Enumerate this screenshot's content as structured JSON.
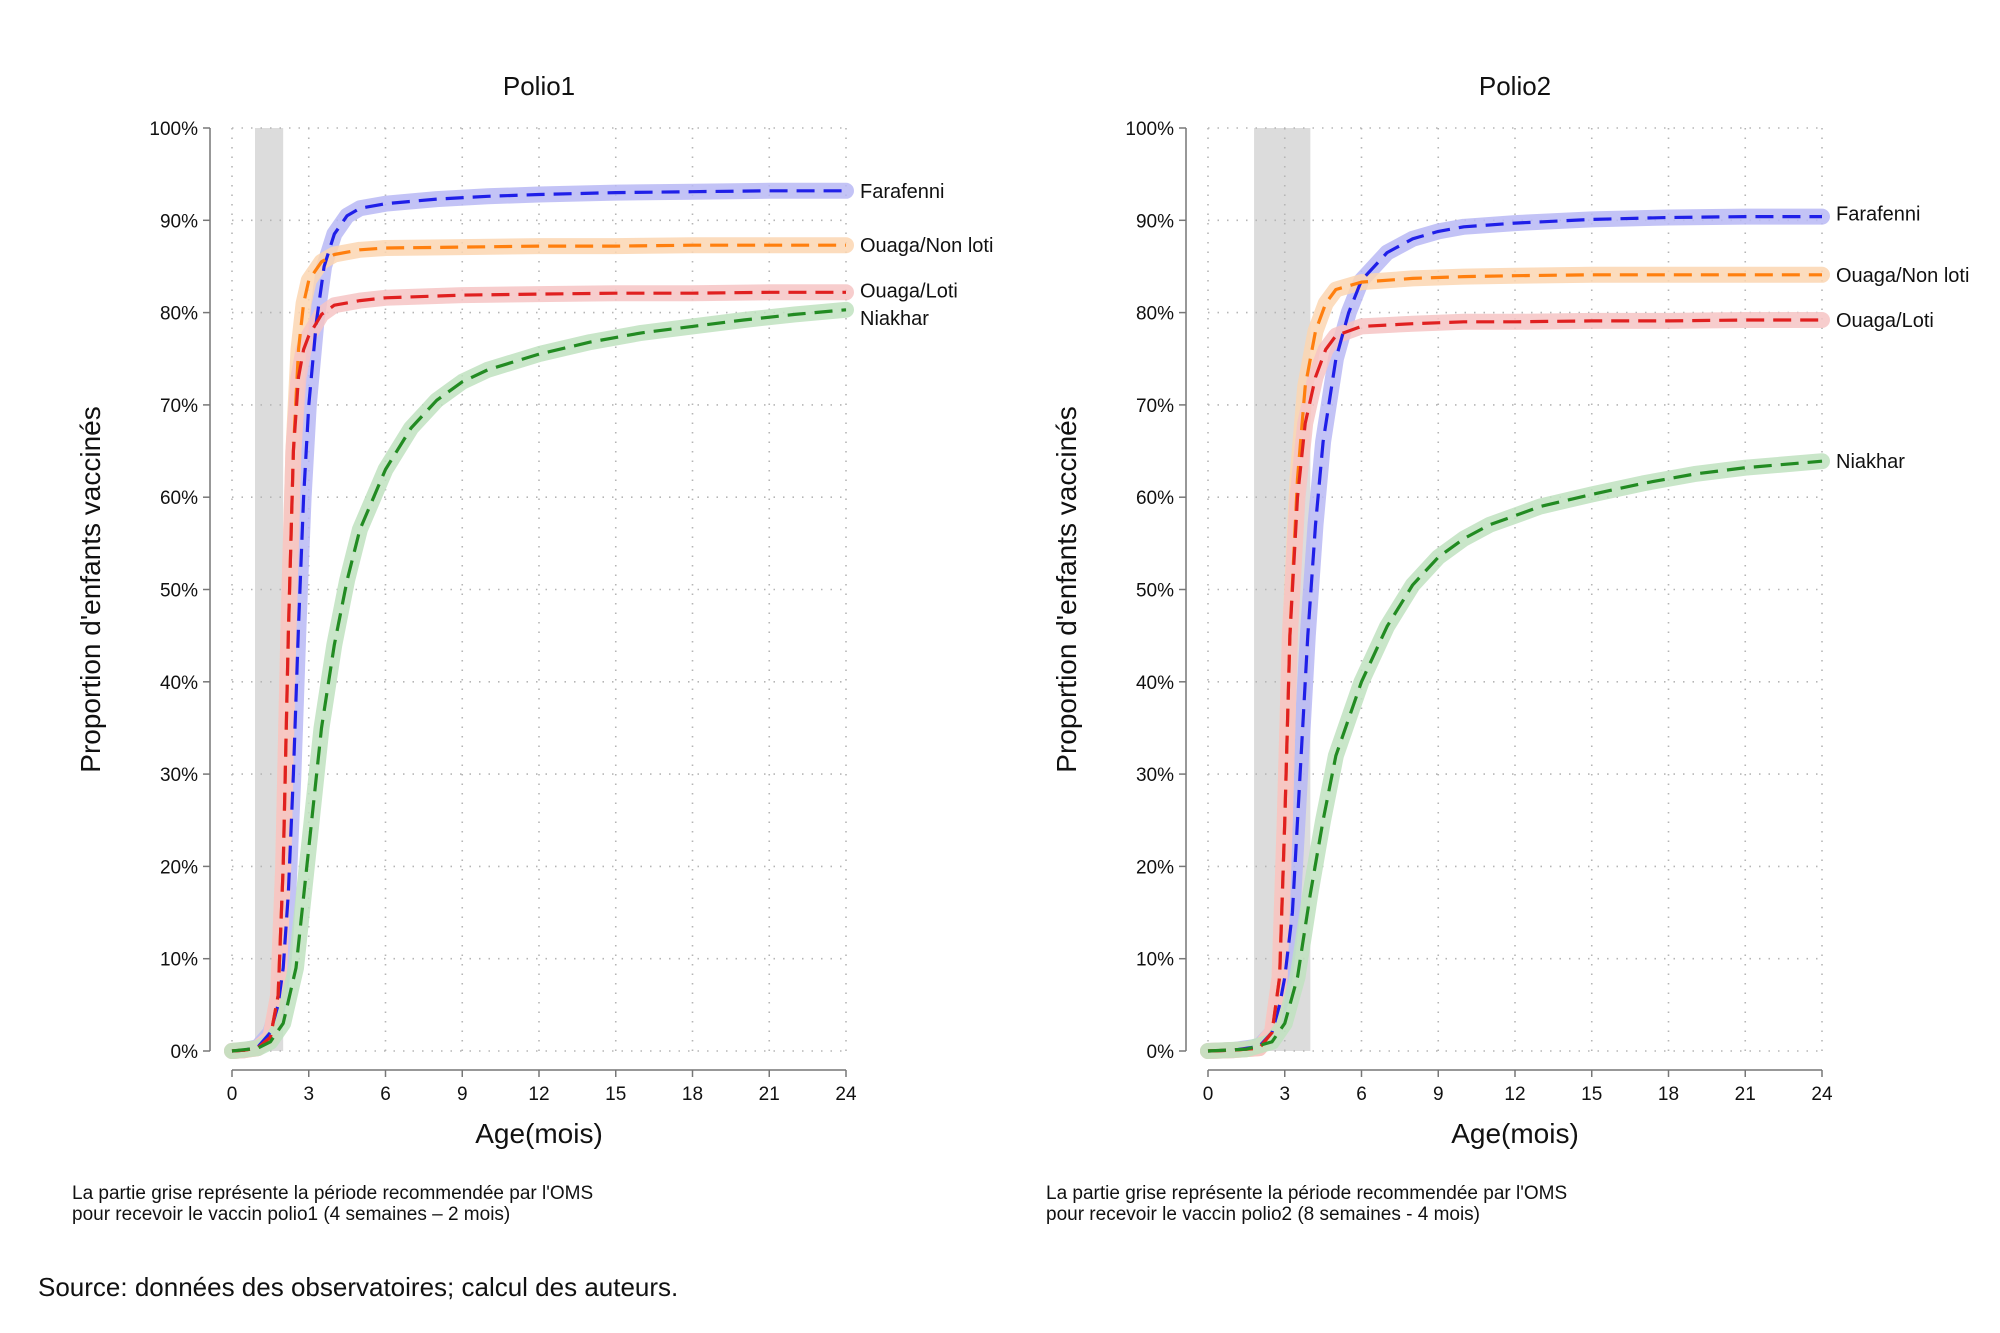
{
  "chart_data": [
    {
      "type": "line",
      "title": "Polio1",
      "xlabel": "Age(mois)",
      "ylabel": "Proportion d'enfants vaccinés",
      "xlim": [
        0,
        24
      ],
      "ylim": [
        0,
        100
      ],
      "x_ticks": [
        "0",
        "3",
        "6",
        "9",
        "12",
        "15",
        "18",
        "21",
        "24"
      ],
      "y_ticks": [
        "0%",
        "10%",
        "20%",
        "30%",
        "40%",
        "50%",
        "60%",
        "70%",
        "80%",
        "90%",
        "100%"
      ],
      "grid": true,
      "shaded_period": [
        0.9,
        2.0
      ],
      "note": [
        "La partie grise représente la période recommendée par l'OMS",
        "pour recevoir le vaccin polio1 (4 semaines – 2 mois)"
      ],
      "series": [
        {
          "name": "Farafenni",
          "color": "#1f1fe8",
          "band": "#b9b9f4",
          "points": [
            [
              0,
              0
            ],
            [
              0.5,
              0.1
            ],
            [
              1,
              0.4
            ],
            [
              1.5,
              2
            ],
            [
              1.8,
              5
            ],
            [
              2,
              9
            ],
            [
              2.2,
              17
            ],
            [
              2.4,
              30
            ],
            [
              2.6,
              46
            ],
            [
              2.8,
              60
            ],
            [
              3,
              70
            ],
            [
              3.3,
              79
            ],
            [
              3.6,
              85
            ],
            [
              4,
              88.5
            ],
            [
              4.5,
              90.5
            ],
            [
              5,
              91.3
            ],
            [
              6,
              91.8
            ],
            [
              8,
              92.3
            ],
            [
              10,
              92.6
            ],
            [
              12,
              92.8
            ],
            [
              15,
              93
            ],
            [
              18,
              93.1
            ],
            [
              21,
              93.2
            ],
            [
              24,
              93.2
            ]
          ]
        },
        {
          "name": "Ouaga/Non loti",
          "color": "#ff7f0e",
          "band": "#fbd6b2",
          "points": [
            [
              0,
              0
            ],
            [
              0.5,
              0.1
            ],
            [
              1,
              0.3
            ],
            [
              1.5,
              1.5
            ],
            [
              1.8,
              6
            ],
            [
              2,
              20
            ],
            [
              2.2,
              45
            ],
            [
              2.4,
              65
            ],
            [
              2.6,
              76
            ],
            [
              2.8,
              81
            ],
            [
              3,
              83.5
            ],
            [
              3.5,
              85.5
            ],
            [
              4,
              86.3
            ],
            [
              5,
              86.8
            ],
            [
              6,
              87
            ],
            [
              9,
              87.1
            ],
            [
              12,
              87.2
            ],
            [
              15,
              87.2
            ],
            [
              18,
              87.3
            ],
            [
              21,
              87.3
            ],
            [
              24,
              87.3
            ]
          ]
        },
        {
          "name": "Ouaga/Loti",
          "color": "#e02020",
          "band": "#f6c4c4",
          "points": [
            [
              0,
              0
            ],
            [
              0.5,
              0.1
            ],
            [
              1,
              0.3
            ],
            [
              1.5,
              1.5
            ],
            [
              1.8,
              6
            ],
            [
              2,
              20
            ],
            [
              2.2,
              45
            ],
            [
              2.4,
              65
            ],
            [
              2.6,
              73
            ],
            [
              2.8,
              76
            ],
            [
              3,
              77.5
            ],
            [
              3.5,
              79.8
            ],
            [
              4,
              80.8
            ],
            [
              5,
              81.3
            ],
            [
              6,
              81.6
            ],
            [
              9,
              81.9
            ],
            [
              12,
              82
            ],
            [
              15,
              82.1
            ],
            [
              18,
              82.1
            ],
            [
              21,
              82.2
            ],
            [
              24,
              82.2
            ]
          ]
        },
        {
          "name": "Niakhar",
          "color": "#228b22",
          "band": "#bfe2bf",
          "points": [
            [
              0,
              0
            ],
            [
              1,
              0.3
            ],
            [
              1.5,
              1
            ],
            [
              2,
              3
            ],
            [
              2.5,
              9
            ],
            [
              3,
              22
            ],
            [
              3.5,
              35
            ],
            [
              4,
              44
            ],
            [
              4.5,
              51
            ],
            [
              5,
              56.5
            ],
            [
              6,
              63
            ],
            [
              7,
              67.5
            ],
            [
              8,
              70.5
            ],
            [
              9,
              72.5
            ],
            [
              10,
              73.8
            ],
            [
              12,
              75.5
            ],
            [
              14,
              76.8
            ],
            [
              16,
              77.8
            ],
            [
              18,
              78.5
            ],
            [
              20,
              79.2
            ],
            [
              22,
              79.8
            ],
            [
              24,
              80.3
            ]
          ]
        }
      ]
    },
    {
      "type": "line",
      "title": "Polio2",
      "xlabel": "Age(mois)",
      "ylabel": "Proportion d'enfants vaccinés",
      "xlim": [
        0,
        24
      ],
      "ylim": [
        0,
        100
      ],
      "x_ticks": [
        "0",
        "3",
        "6",
        "9",
        "12",
        "15",
        "18",
        "21",
        "24"
      ],
      "y_ticks": [
        "0%",
        "10%",
        "20%",
        "30%",
        "40%",
        "50%",
        "60%",
        "70%",
        "80%",
        "90%",
        "100%"
      ],
      "grid": true,
      "shaded_period": [
        1.8,
        4.0
      ],
      "note": [
        "La partie grise représente la période recommendée par l'OMS",
        "pour recevoir le vaccin polio2 (8 semaines - 4 mois)"
      ],
      "series": [
        {
          "name": "Farafenni",
          "color": "#1f1fe8",
          "band": "#b9b9f4",
          "points": [
            [
              0,
              0
            ],
            [
              1,
              0.1
            ],
            [
              2,
              0.5
            ],
            [
              2.5,
              2
            ],
            [
              2.8,
              5
            ],
            [
              3,
              8
            ],
            [
              3.3,
              15
            ],
            [
              3.6,
              30
            ],
            [
              3.9,
              45
            ],
            [
              4.2,
              57
            ],
            [
              4.5,
              66
            ],
            [
              5,
              75
            ],
            [
              5.5,
              80
            ],
            [
              6,
              83.5
            ],
            [
              7,
              86.5
            ],
            [
              8,
              88
            ],
            [
              9,
              88.8
            ],
            [
              10,
              89.3
            ],
            [
              12,
              89.7
            ],
            [
              15,
              90.1
            ],
            [
              18,
              90.3
            ],
            [
              21,
              90.4
            ],
            [
              24,
              90.4
            ]
          ]
        },
        {
          "name": "Ouaga/Non loti",
          "color": "#ff7f0e",
          "band": "#fbd6b2",
          "points": [
            [
              0,
              0
            ],
            [
              1,
              0.1
            ],
            [
              2,
              0.3
            ],
            [
              2.5,
              2
            ],
            [
              2.8,
              8
            ],
            [
              3,
              25
            ],
            [
              3.2,
              45
            ],
            [
              3.5,
              62
            ],
            [
              3.8,
              72
            ],
            [
              4.2,
              78
            ],
            [
              4.6,
              81
            ],
            [
              5,
              82.5
            ],
            [
              6,
              83.3
            ],
            [
              8,
              83.7
            ],
            [
              10,
              83.9
            ],
            [
              12,
              84
            ],
            [
              15,
              84.1
            ],
            [
              18,
              84.1
            ],
            [
              21,
              84.1
            ],
            [
              24,
              84.1
            ]
          ]
        },
        {
          "name": "Ouaga/Loti",
          "color": "#e02020",
          "band": "#f6c4c4",
          "points": [
            [
              0,
              0
            ],
            [
              1,
              0.1
            ],
            [
              2,
              0.3
            ],
            [
              2.5,
              2
            ],
            [
              2.8,
              8
            ],
            [
              3,
              25
            ],
            [
              3.2,
              45
            ],
            [
              3.5,
              60
            ],
            [
              3.8,
              68
            ],
            [
              4.2,
              73
            ],
            [
              4.6,
              76
            ],
            [
              5,
              77.5
            ],
            [
              6,
              78.5
            ],
            [
              8,
              78.8
            ],
            [
              10,
              79
            ],
            [
              12,
              79
            ],
            [
              15,
              79.1
            ],
            [
              18,
              79.1
            ],
            [
              21,
              79.2
            ],
            [
              24,
              79.2
            ]
          ]
        },
        {
          "name": "Niakhar",
          "color": "#228b22",
          "band": "#bfe2bf",
          "points": [
            [
              0,
              0
            ],
            [
              1.5,
              0.2
            ],
            [
              2.5,
              1
            ],
            [
              3,
              3
            ],
            [
              3.5,
              8
            ],
            [
              4,
              17
            ],
            [
              4.5,
              25
            ],
            [
              5,
              32
            ],
            [
              6,
              40
            ],
            [
              7,
              46
            ],
            [
              8,
              50.5
            ],
            [
              9,
              53.5
            ],
            [
              10,
              55.5
            ],
            [
              11,
              57
            ],
            [
              12,
              58
            ],
            [
              13,
              59
            ],
            [
              15,
              60.3
            ],
            [
              17,
              61.5
            ],
            [
              19,
              62.5
            ],
            [
              21,
              63.2
            ],
            [
              24,
              63.9
            ]
          ]
        }
      ]
    }
  ],
  "source": "Source: données des observatoires; calcul des auteurs."
}
